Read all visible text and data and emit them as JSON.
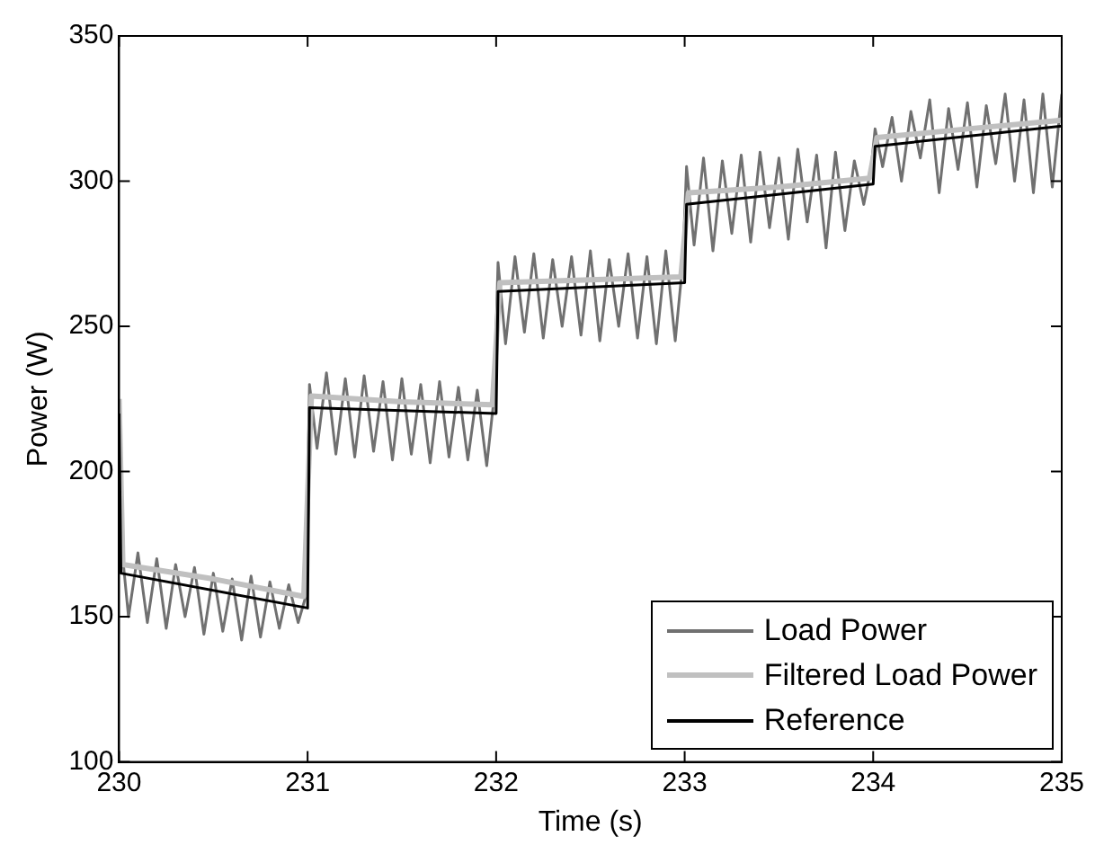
{
  "chart_data": {
    "type": "line",
    "xlabel": "Time (s)",
    "ylabel": "Power (W)",
    "xlim": [
      230,
      235
    ],
    "xticks": [
      230,
      231,
      232,
      233,
      234,
      235
    ],
    "ylim": [
      100,
      350
    ],
    "yticks": [
      100,
      150,
      200,
      250,
      300,
      350
    ],
    "grid": false,
    "legend": "bottom right",
    "marker": "none",
    "line_style": "solid",
    "series": [
      {
        "name": "Load Power",
        "color": "#707070",
        "x": [
          230,
          230.02,
          230.05,
          230.1,
          230.15,
          230.2,
          230.25,
          230.3,
          230.35,
          230.4,
          230.45,
          230.5,
          230.55,
          230.6,
          230.65,
          230.7,
          230.75,
          230.8,
          230.85,
          230.9,
          230.95,
          230.99,
          231.01,
          231.05,
          231.1,
          231.15,
          231.2,
          231.25,
          231.3,
          231.35,
          231.4,
          231.45,
          231.5,
          231.55,
          231.6,
          231.65,
          231.7,
          231.75,
          231.8,
          231.85,
          231.9,
          231.95,
          231.99,
          232.01,
          232.05,
          232.1,
          232.15,
          232.2,
          232.25,
          232.3,
          232.35,
          232.4,
          232.45,
          232.5,
          232.55,
          232.6,
          232.65,
          232.7,
          232.75,
          232.8,
          232.85,
          232.9,
          232.95,
          232.99,
          233.01,
          233.05,
          233.1,
          233.15,
          233.2,
          233.25,
          233.3,
          233.35,
          233.4,
          233.45,
          233.5,
          233.55,
          233.6,
          233.65,
          233.7,
          233.75,
          233.8,
          233.85,
          233.9,
          233.95,
          233.99,
          234.01,
          234.05,
          234.1,
          234.15,
          234.2,
          234.25,
          234.3,
          234.35,
          234.4,
          234.45,
          234.5,
          234.55,
          234.6,
          234.65,
          234.7,
          234.75,
          234.8,
          234.85,
          234.9,
          234.95,
          235
        ],
        "values": [
          220,
          170,
          150,
          172,
          148,
          170,
          146,
          168,
          150,
          167,
          144,
          165,
          145,
          163,
          142,
          164,
          143,
          162,
          146,
          161,
          148,
          157,
          230,
          208,
          234,
          206,
          232,
          205,
          233,
          207,
          231,
          204,
          232,
          206,
          230,
          203,
          231,
          205,
          229,
          204,
          228,
          202,
          226,
          272,
          244,
          274,
          248,
          275,
          246,
          273,
          250,
          274,
          247,
          276,
          245,
          273,
          250,
          275,
          246,
          274,
          244,
          276,
          245,
          272,
          305,
          278,
          308,
          276,
          307,
          282,
          309,
          279,
          310,
          284,
          308,
          280,
          311,
          286,
          309,
          277,
          310,
          283,
          307,
          292,
          305,
          318,
          305,
          322,
          300,
          324,
          308,
          328,
          296,
          325,
          304,
          327,
          298,
          326,
          306,
          330,
          300,
          328,
          296,
          330,
          298,
          330
        ]
      },
      {
        "name": "Filtered Load Power",
        "color": "#c0c0c0",
        "x": [
          230,
          230.02,
          230.5,
          230.98,
          231.02,
          231.5,
          231.98,
          232.02,
          232.5,
          232.98,
          233.02,
          233.5,
          233.98,
          234.02,
          234.5,
          235
        ],
        "values": [
          225,
          168,
          163,
          157,
          226,
          224,
          223,
          265,
          266,
          267,
          296,
          298,
          301,
          315,
          318,
          321
        ]
      },
      {
        "name": "Reference",
        "color": "#000000",
        "x": [
          230,
          230.01,
          231,
          231.01,
          232,
          232.01,
          233,
          233.01,
          234,
          234.01,
          235
        ],
        "values": [
          220,
          165,
          153,
          222,
          220,
          262,
          265,
          292,
          299,
          312,
          319
        ]
      }
    ]
  }
}
